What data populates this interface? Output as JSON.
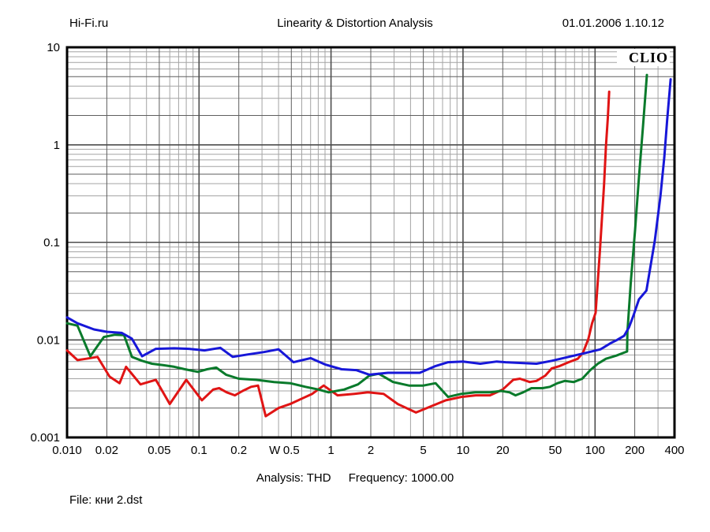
{
  "header": {
    "site": "Hi-Fi.ru",
    "title": "Linearity & Distortion Analysis",
    "datetime": "01.01.2006 1.10.12"
  },
  "footer": {
    "analysis": "Analysis: THD",
    "frequency": "Frequency: 1000.00",
    "file": "File: кни 2.dst"
  },
  "chart_data": {
    "type": "line",
    "title": "Linearity & Distortion Analysis",
    "brand": "CLIO",
    "grid": true,
    "legend": "none",
    "x_axis": {
      "scale": "log",
      "unit": "W",
      "min": 0.01,
      "max": 400,
      "ticks": [
        {
          "v": 0.01,
          "t": "0.010"
        },
        {
          "v": 0.02,
          "t": "0.02"
        },
        {
          "v": 0.05,
          "t": "0.05"
        },
        {
          "v": 0.1,
          "t": "0.1"
        },
        {
          "v": 0.2,
          "t": "0.2"
        },
        {
          "v": 0.5,
          "t": "0.5"
        },
        {
          "v": 1,
          "t": "1"
        },
        {
          "v": 2,
          "t": "2"
        },
        {
          "v": 5,
          "t": "5"
        },
        {
          "v": 10,
          "t": "10"
        },
        {
          "v": 20,
          "t": "20"
        },
        {
          "v": 50,
          "t": "50"
        },
        {
          "v": 100,
          "t": "100"
        },
        {
          "v": 200,
          "t": "200"
        },
        {
          "v": 400,
          "t": "400"
        }
      ]
    },
    "y_axis": {
      "scale": "log",
      "unit": "%THD",
      "min": 0.001,
      "max": 10,
      "ticks": [
        {
          "v": 10,
          "t": "10"
        },
        {
          "v": 1,
          "t": "1"
        },
        {
          "v": 0.1,
          "t": "0.1"
        },
        {
          "v": 0.01,
          "t": "0.01"
        },
        {
          "v": 0.001,
          "t": "0.001"
        }
      ]
    },
    "series": [
      {
        "name": "red",
        "color": "#e01414",
        "points": [
          [
            0.01,
            0.0078
          ],
          [
            0.012,
            0.0062
          ],
          [
            0.014,
            0.0064
          ],
          [
            0.017,
            0.0067
          ],
          [
            0.021,
            0.0042
          ],
          [
            0.025,
            0.0036
          ],
          [
            0.028,
            0.0053
          ],
          [
            0.036,
            0.0035
          ],
          [
            0.047,
            0.0039
          ],
          [
            0.06,
            0.0022
          ],
          [
            0.08,
            0.0039
          ],
          [
            0.105,
            0.0024
          ],
          [
            0.128,
            0.0031
          ],
          [
            0.142,
            0.0032
          ],
          [
            0.162,
            0.0029
          ],
          [
            0.187,
            0.0027
          ],
          [
            0.214,
            0.003
          ],
          [
            0.248,
            0.0033
          ],
          [
            0.28,
            0.0034
          ],
          [
            0.32,
            0.00165
          ],
          [
            0.4,
            0.002
          ],
          [
            0.49,
            0.0022
          ],
          [
            0.6,
            0.0025
          ],
          [
            0.72,
            0.0028
          ],
          [
            0.88,
            0.0034
          ],
          [
            1.12,
            0.0027
          ],
          [
            1.5,
            0.0028
          ],
          [
            1.9,
            0.0029
          ],
          [
            2.5,
            0.0028
          ],
          [
            3.2,
            0.0022
          ],
          [
            4.4,
            0.0018
          ],
          [
            5.8,
            0.0021
          ],
          [
            7.4,
            0.0024
          ],
          [
            9.7,
            0.0026
          ],
          [
            12.5,
            0.0027
          ],
          [
            16,
            0.0027
          ],
          [
            20,
            0.0031
          ],
          [
            24,
            0.0039
          ],
          [
            27,
            0.004
          ],
          [
            32,
            0.0037
          ],
          [
            36,
            0.0038
          ],
          [
            42,
            0.0043
          ],
          [
            47,
            0.0051
          ],
          [
            54,
            0.0054
          ],
          [
            63,
            0.0059
          ],
          [
            74,
            0.0064
          ],
          [
            81,
            0.0074
          ],
          [
            89,
            0.0102
          ],
          [
            95,
            0.0148
          ],
          [
            101,
            0.019
          ],
          [
            109,
            0.083
          ],
          [
            117,
            0.39
          ],
          [
            121,
            0.97
          ],
          [
            125,
            1.9
          ],
          [
            128,
            3.5
          ]
        ]
      },
      {
        "name": "green",
        "color": "#097a2b",
        "points": [
          [
            0.01,
            0.0148
          ],
          [
            0.012,
            0.014
          ],
          [
            0.015,
            0.0068
          ],
          [
            0.019,
            0.0107
          ],
          [
            0.023,
            0.0113
          ],
          [
            0.027,
            0.0112
          ],
          [
            0.031,
            0.0067
          ],
          [
            0.037,
            0.0061
          ],
          [
            0.044,
            0.0057
          ],
          [
            0.054,
            0.0055
          ],
          [
            0.065,
            0.0053
          ],
          [
            0.078,
            0.005
          ],
          [
            0.098,
            0.0047
          ],
          [
            0.115,
            0.005
          ],
          [
            0.135,
            0.0052
          ],
          [
            0.16,
            0.0044
          ],
          [
            0.2,
            0.004
          ],
          [
            0.27,
            0.0039
          ],
          [
            0.37,
            0.0037
          ],
          [
            0.49,
            0.0036
          ],
          [
            0.64,
            0.0033
          ],
          [
            0.8,
            0.0031
          ],
          [
            0.96,
            0.0029
          ],
          [
            1.26,
            0.0031
          ],
          [
            1.6,
            0.0035
          ],
          [
            1.95,
            0.0043
          ],
          [
            2.3,
            0.0045
          ],
          [
            2.95,
            0.0037
          ],
          [
            3.9,
            0.0034
          ],
          [
            5.0,
            0.0034
          ],
          [
            6.2,
            0.0036
          ],
          [
            7.7,
            0.0026
          ],
          [
            9.7,
            0.0028
          ],
          [
            12.4,
            0.0029
          ],
          [
            16,
            0.0029
          ],
          [
            19.5,
            0.003
          ],
          [
            22.5,
            0.0029
          ],
          [
            25,
            0.0027
          ],
          [
            28.5,
            0.0029
          ],
          [
            33,
            0.0032
          ],
          [
            40,
            0.0032
          ],
          [
            45.5,
            0.0033
          ],
          [
            52,
            0.0036
          ],
          [
            59,
            0.0038
          ],
          [
            69,
            0.0037
          ],
          [
            80,
            0.004
          ],
          [
            92,
            0.0049
          ],
          [
            105,
            0.0057
          ],
          [
            121,
            0.0064
          ],
          [
            145,
            0.0069
          ],
          [
            166,
            0.0074
          ],
          [
            175,
            0.0076
          ],
          [
            176,
            0.012
          ],
          [
            187,
            0.04
          ],
          [
            201,
            0.133
          ],
          [
            215,
            0.46
          ],
          [
            231,
            1.56
          ],
          [
            247,
            5.2
          ]
        ]
      },
      {
        "name": "blue",
        "color": "#1717d8",
        "points": [
          [
            0.01,
            0.017
          ],
          [
            0.012,
            0.0148
          ],
          [
            0.016,
            0.0128
          ],
          [
            0.02,
            0.0121
          ],
          [
            0.026,
            0.0118
          ],
          [
            0.031,
            0.0103
          ],
          [
            0.037,
            0.0068
          ],
          [
            0.047,
            0.0081
          ],
          [
            0.065,
            0.0082
          ],
          [
            0.084,
            0.0081
          ],
          [
            0.11,
            0.0078
          ],
          [
            0.145,
            0.0083
          ],
          [
            0.18,
            0.0067
          ],
          [
            0.235,
            0.0071
          ],
          [
            0.31,
            0.0075
          ],
          [
            0.4,
            0.008
          ],
          [
            0.52,
            0.0059
          ],
          [
            0.7,
            0.0065
          ],
          [
            0.9,
            0.0056
          ],
          [
            1.2,
            0.005
          ],
          [
            1.55,
            0.0049
          ],
          [
            1.95,
            0.0044
          ],
          [
            2.7,
            0.0046
          ],
          [
            3.6,
            0.0046
          ],
          [
            4.7,
            0.0046
          ],
          [
            6.2,
            0.0054
          ],
          [
            7.7,
            0.0059
          ],
          [
            10,
            0.006
          ],
          [
            13.5,
            0.0057
          ],
          [
            18,
            0.006
          ],
          [
            21,
            0.0059
          ],
          [
            27,
            0.0058
          ],
          [
            36,
            0.0057
          ],
          [
            47,
            0.0061
          ],
          [
            63,
            0.0067
          ],
          [
            83,
            0.0073
          ],
          [
            110,
            0.008
          ],
          [
            132,
            0.0093
          ],
          [
            145,
            0.0099
          ],
          [
            166,
            0.011
          ],
          [
            181,
            0.0135
          ],
          [
            196,
            0.018
          ],
          [
            215,
            0.026
          ],
          [
            245,
            0.032
          ],
          [
            284,
            0.105
          ],
          [
            313,
            0.3
          ],
          [
            335,
            0.75
          ],
          [
            352,
            1.8
          ],
          [
            374,
            4.7
          ]
        ]
      }
    ],
    "annotations": {
      "analysis": "THD",
      "frequency": "1000.00"
    }
  },
  "colors": {
    "background": "#ffffff",
    "frame": "#000000",
    "grid_major": "#4d4d4d",
    "grid_emph": "#5e5e5e",
    "grid_minor": "#a4a4a4",
    "red_trace": "#e01414",
    "green_trace": "#097a2b",
    "blue_trace": "#1717d8"
  }
}
